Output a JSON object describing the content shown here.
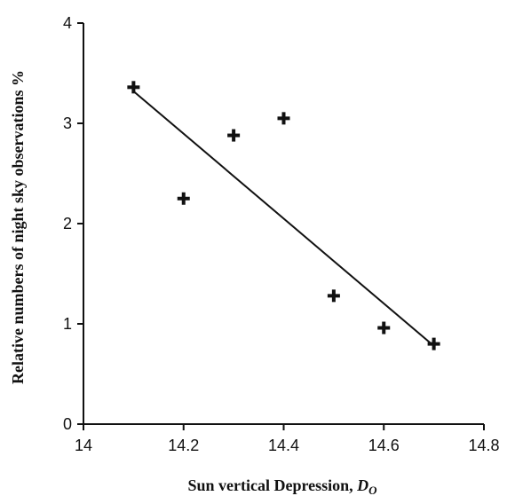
{
  "chart_data": {
    "type": "scatter",
    "title": "",
    "xlabel": "Sun vertical Depression, ",
    "xlabel_symbol": "D",
    "xlabel_subscript": "O",
    "ylabel": "Relative numbers of night sky observations %",
    "xlim": [
      14,
      14.8
    ],
    "ylim": [
      0,
      4
    ],
    "x_ticks": [
      "14",
      "14.2",
      "14.4",
      "14.6",
      "14.8"
    ],
    "y_ticks": [
      "0",
      "1",
      "2",
      "3",
      "4"
    ],
    "grid": false,
    "marker": "plus",
    "series": [
      {
        "points": [
          {
            "x": 14.1,
            "y": 3.36
          },
          {
            "x": 14.2,
            "y": 2.25
          },
          {
            "x": 14.3,
            "y": 2.88
          },
          {
            "x": 14.4,
            "y": 3.05
          },
          {
            "x": 14.5,
            "y": 1.28
          },
          {
            "x": 14.6,
            "y": 0.96
          },
          {
            "x": 14.7,
            "y": 0.8
          }
        ]
      }
    ],
    "trend_line": {
      "x": [
        14.1,
        14.7
      ],
      "y": [
        3.32,
        0.78
      ]
    },
    "colors": {
      "marks": "#111111",
      "axes": "#111111"
    }
  }
}
